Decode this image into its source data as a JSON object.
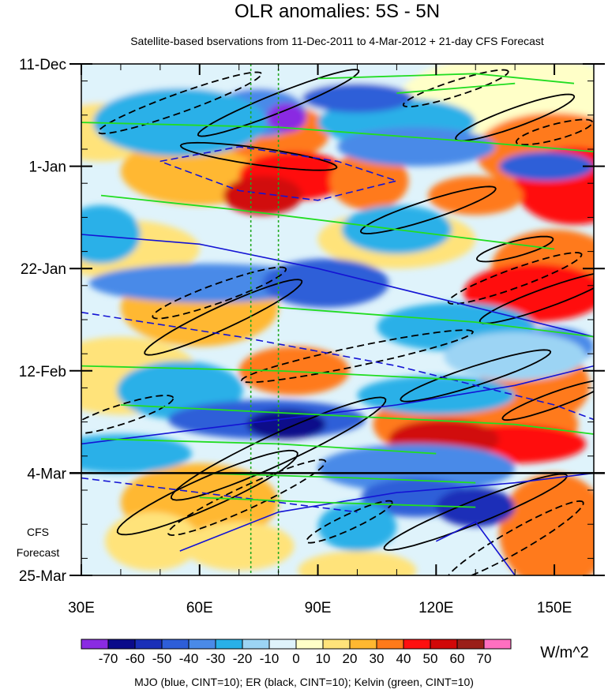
{
  "chart_data": {
    "type": "heatmap",
    "title": "OLR anomalies: 5S - 5N",
    "subtitle": "Satellite-based bservations from 11-Dec-2011 to 4-Mar-2012 + 21-day CFS Forecast",
    "x_ticks": [
      {
        "value": 30,
        "label": "30E"
      },
      {
        "value": 60,
        "label": "60E"
      },
      {
        "value": 90,
        "label": "90E"
      },
      {
        "value": 120,
        "label": "120E"
      },
      {
        "value": 150,
        "label": "150E"
      }
    ],
    "x_range": [
      30,
      160
    ],
    "y_range_days": [
      0,
      105
    ],
    "y_ticks": [
      {
        "day": 0,
        "label": "11-Dec"
      },
      {
        "day": 21,
        "label": "1-Jan"
      },
      {
        "day": 42,
        "label": "22-Jan"
      },
      {
        "day": 63,
        "label": "12-Feb"
      },
      {
        "day": 84,
        "label": "4-Mar"
      },
      {
        "day": 105,
        "label": "25-Mar"
      }
    ],
    "forecast_start_day": 84,
    "forecast_label": [
      "CFS",
      "Forecast"
    ],
    "reference_longitudes": [
      73,
      80
    ],
    "colorbar": {
      "labels": [
        "-70",
        "-60",
        "-50",
        "-40",
        "-30",
        "-20",
        "-10",
        "0",
        "10",
        "20",
        "30",
        "40",
        "50",
        "60",
        "70"
      ],
      "colors": [
        "#8a2be2",
        "#0b0b8a",
        "#1a2fb8",
        "#2e5ed8",
        "#4a8ae8",
        "#29b0e8",
        "#9cd4f4",
        "#dff3fb",
        "#ffffc8",
        "#ffe37a",
        "#ffb830",
        "#ff7a1a",
        "#ff1010",
        "#d10808",
        "#9a1f18",
        "#ff6fc0"
      ],
      "units": "W/m^2"
    },
    "footnote": "MJO (blue, CINT=10); ER (black, CINT=10); Kelvin (green, CINT=10)",
    "contour_colors": {
      "mjo": "#1414d4",
      "er": "#000000",
      "kelvin": "#22dd22",
      "reference": "#22aa22"
    }
  }
}
